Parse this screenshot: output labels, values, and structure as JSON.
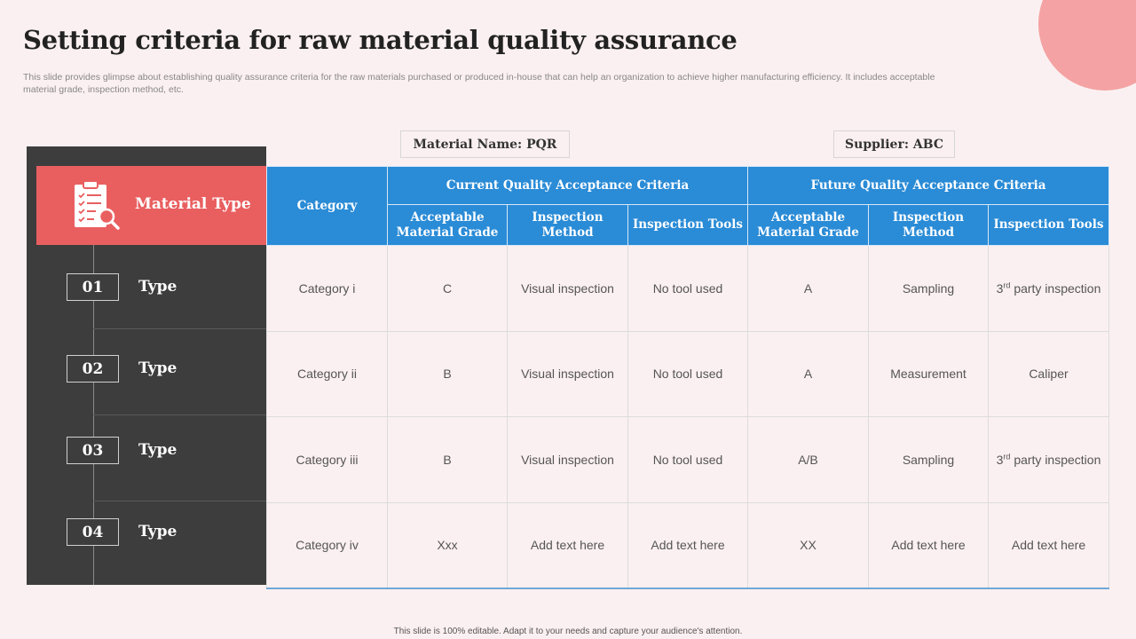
{
  "title": "Setting criteria for raw material quality assurance",
  "subtitle": "This slide provides glimpse about establishing quality assurance criteria for the raw materials purchased or produced in-house that can help an organization to achieve higher manufacturing efficiency.  It includes acceptable material grade, inspection method, etc.",
  "material_name": "Material Name: PQR",
  "supplier": "Supplier: ABC",
  "material_type_label": "Material Type",
  "icon": "clipboard-search-icon",
  "types": [
    {
      "num": "01",
      "label": "Type"
    },
    {
      "num": "02",
      "label": "Type"
    },
    {
      "num": "03",
      "label": "Type"
    },
    {
      "num": "04",
      "label": "Type"
    }
  ],
  "table": {
    "category_header": "Category",
    "current_header": "Current Quality Acceptance Criteria",
    "future_header": "Future Quality Acceptance Criteria",
    "sub_headers": {
      "grade": "Acceptable Material Grade",
      "method": "Inspection Method",
      "tools": "Inspection Tools"
    },
    "rows": [
      {
        "category": "Category i",
        "cur_grade": "C",
        "cur_method": "Visual inspection",
        "cur_tools": "No tool used",
        "fut_grade": "A",
        "fut_method": "Sampling",
        "fut_tools_sup": "3",
        "fut_tools_sup_suffix": "rd",
        "fut_tools": "party inspection"
      },
      {
        "category": "Category ii",
        "cur_grade": "B",
        "cur_method": "Visual inspection",
        "cur_tools": "No tool used",
        "fut_grade": "A",
        "fut_method": "Measurement",
        "fut_tools": "Caliper"
      },
      {
        "category": "Category iii",
        "cur_grade": "B",
        "cur_method": "Visual inspection",
        "cur_tools": "No tool used",
        "fut_grade": "A/B",
        "fut_method": "Sampling",
        "fut_tools_sup": "3",
        "fut_tools_sup_suffix": "rd",
        "fut_tools": "party inspection"
      },
      {
        "category": "Category iv",
        "cur_grade": "Xxx",
        "cur_method": "Add text here",
        "cur_tools": "Add text here",
        "fut_grade": "XX",
        "fut_method": "Add text here",
        "fut_tools": "Add text here"
      }
    ]
  },
  "footer": "This slide is 100% editable.  Adapt it to your needs and capture your audience's attention.",
  "colors": {
    "accent_red": "#e95f60",
    "header_blue": "#2a8bd6",
    "dark_panel": "#3d3d3d",
    "corner_pink": "#f4a2a3",
    "background": "#fbf0f1"
  }
}
